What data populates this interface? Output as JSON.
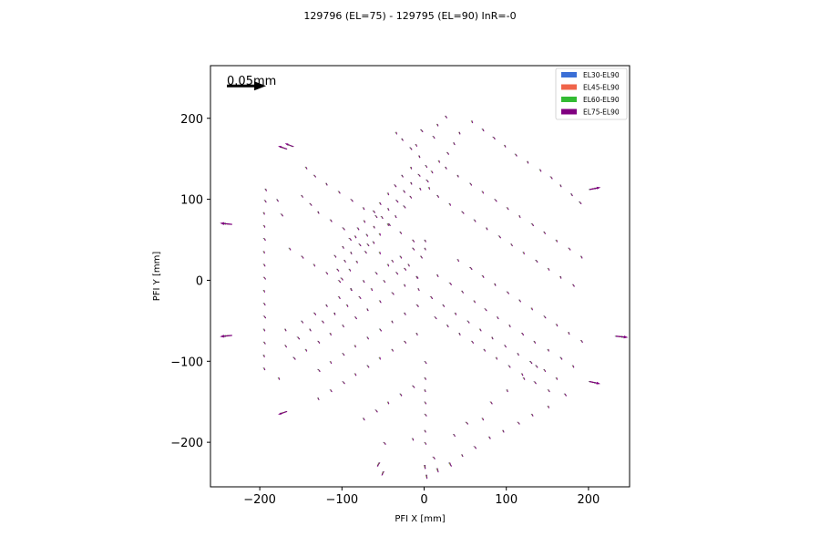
{
  "chart_data": {
    "type": "quiver",
    "title": "129796 (EL=75) - 129795 (EL=90) InR=-0",
    "xlabel": "PFI X [mm]",
    "ylabel": "PFI Y [mm]",
    "xlim": [
      -260,
      250
    ],
    "ylim": [
      -255,
      265
    ],
    "xticks": [
      -200,
      -100,
      0,
      100,
      200
    ],
    "yticks": [
      -200,
      -100,
      0,
      100,
      200
    ],
    "tick_labels_x": [
      "−200",
      "−100",
      "0",
      "100",
      "200"
    ],
    "tick_labels_y": [
      "−200",
      "−100",
      "0",
      "100",
      "200"
    ],
    "grid": false,
    "legend_position": "top-right",
    "quiver_key": {
      "label": "0.05mm",
      "length_mm": 0.05,
      "x": -240,
      "y": 240
    },
    "series": [
      {
        "name": "EL30-EL90",
        "color": "#3b6fd6"
      },
      {
        "name": "EL45-EL90",
        "color": "#f0644a"
      },
      {
        "name": "EL60-EL90",
        "color": "#33bb33"
      },
      {
        "name": "EL75-EL90",
        "color": "#800080"
      }
    ],
    "points": [
      [
        -35,
        183
      ],
      [
        -28,
        175
      ],
      [
        -18,
        164
      ],
      [
        -7,
        154
      ],
      [
        1,
        142
      ],
      [
        -8,
        131
      ],
      [
        -17,
        121
      ],
      [
        -26,
        111
      ],
      [
        -35,
        99
      ],
      [
        -45,
        89
      ],
      [
        -53,
        79
      ],
      [
        -62,
        67
      ],
      [
        -71,
        57
      ],
      [
        -80,
        45
      ],
      [
        -90,
        35
      ],
      [
        -98,
        25
      ],
      [
        -107,
        14
      ],
      [
        15,
        193
      ],
      [
        25,
        203
      ],
      [
        -5,
        186
      ],
      [
        -11,
        168
      ],
      [
        10,
        178
      ],
      [
        -17,
        140
      ],
      [
        -28,
        130
      ],
      [
        -37,
        118
      ],
      [
        -45,
        108
      ],
      [
        -55,
        96
      ],
      [
        -63,
        86
      ],
      [
        -74,
        74
      ],
      [
        -82,
        65
      ],
      [
        -92,
        52
      ],
      [
        -100,
        42
      ],
      [
        -110,
        31
      ],
      [
        42,
        183
      ],
      [
        35,
        170
      ],
      [
        27,
        158
      ],
      [
        17,
        148
      ],
      [
        8,
        135
      ],
      [
        2,
        124
      ],
      [
        -6,
        114
      ],
      [
        -18,
        104
      ],
      [
        -26,
        92
      ],
      [
        -36,
        80
      ],
      [
        -44,
        70
      ],
      [
        -55,
        58
      ],
      [
        -63,
        48
      ],
      [
        -73,
        36
      ],
      [
        -83,
        24
      ],
      [
        -92,
        14
      ],
      [
        -102,
        3
      ],
      [
        57,
        197
      ],
      [
        70,
        187
      ],
      [
        83,
        177
      ],
      [
        97,
        167
      ],
      [
        110,
        156
      ],
      [
        125,
        147
      ],
      [
        140,
        137
      ],
      [
        153,
        128
      ],
      [
        165,
        118
      ],
      [
        178,
        107
      ],
      [
        188,
        97
      ],
      [
        200,
        112
      ],
      [
        -235,
        69
      ],
      [
        -235,
        -68
      ],
      [
        -194,
        113
      ],
      [
        -195,
        99
      ],
      [
        -196,
        84
      ],
      [
        -196,
        68
      ],
      [
        -196,
        52
      ],
      [
        -196,
        36
      ],
      [
        -196,
        20
      ],
      [
        -196,
        4
      ],
      [
        -196,
        -12
      ],
      [
        -196,
        -28
      ],
      [
        -196,
        -44
      ],
      [
        -196,
        -60
      ],
      [
        -196,
        -76
      ],
      [
        -196,
        -92
      ],
      [
        -196,
        -108
      ],
      [
        -168,
        162
      ],
      [
        -168,
        -162
      ],
      [
        -180,
        100
      ],
      [
        -175,
        82
      ],
      [
        -178,
        -120
      ],
      [
        232,
        -69
      ],
      [
        200,
        -125
      ],
      [
        180,
        -105
      ],
      [
        165,
        -95
      ],
      [
        150,
        -85
      ],
      [
        133,
        -75
      ],
      [
        118,
        -65
      ],
      [
        103,
        -55
      ],
      [
        88,
        -45
      ],
      [
        73,
        -35
      ],
      [
        60,
        -25
      ],
      [
        45,
        -13
      ],
      [
        30,
        -3
      ],
      [
        15,
        7
      ],
      [
        190,
        -74
      ],
      [
        175,
        -64
      ],
      [
        160,
        -54
      ],
      [
        145,
        -44
      ],
      [
        130,
        -34
      ],
      [
        115,
        -24
      ],
      [
        100,
        -14
      ],
      [
        85,
        -4
      ],
      [
        70,
        6
      ],
      [
        55,
        16
      ],
      [
        40,
        26
      ],
      [
        180,
        -5
      ],
      [
        165,
        5
      ],
      [
        150,
        15
      ],
      [
        135,
        25
      ],
      [
        120,
        35
      ],
      [
        105,
        45
      ],
      [
        90,
        55
      ],
      [
        75,
        65
      ],
      [
        60,
        75
      ],
      [
        45,
        85
      ],
      [
        30,
        95
      ],
      [
        15,
        105
      ],
      [
        5,
        115
      ],
      [
        190,
        30
      ],
      [
        175,
        40
      ],
      [
        160,
        50
      ],
      [
        145,
        60
      ],
      [
        130,
        70
      ],
      [
        115,
        80
      ],
      [
        100,
        90
      ],
      [
        85,
        100
      ],
      [
        70,
        110
      ],
      [
        55,
        120
      ],
      [
        40,
        130
      ],
      [
        25,
        140
      ],
      [
        170,
        -140
      ],
      [
        150,
        -155
      ],
      [
        130,
        -165
      ],
      [
        113,
        -175
      ],
      [
        95,
        -185
      ],
      [
        78,
        -193
      ],
      [
        60,
        -205
      ],
      [
        45,
        -215
      ],
      [
        30,
        -225
      ],
      [
        15,
        -232
      ],
      [
        2,
        -240
      ],
      [
        -50,
        -236
      ],
      [
        -55,
        -225
      ],
      [
        0,
        -228
      ],
      [
        10,
        -218
      ],
      [
        160,
        -120
      ],
      [
        145,
        -110
      ],
      [
        128,
        -100
      ],
      [
        113,
        -90
      ],
      [
        97,
        -80
      ],
      [
        82,
        -70
      ],
      [
        67,
        -60
      ],
      [
        52,
        -50
      ],
      [
        37,
        -40
      ],
      [
        22,
        -30
      ],
      [
        7,
        -20
      ],
      [
        -8,
        -10
      ],
      [
        150,
        -135
      ],
      [
        133,
        -125
      ],
      [
        118,
        -115
      ],
      [
        102,
        -105
      ],
      [
        87,
        -95
      ],
      [
        72,
        -85
      ],
      [
        57,
        -75
      ],
      [
        42,
        -65
      ],
      [
        27,
        -55
      ],
      [
        12,
        -45
      ],
      [
        -170,
        -60
      ],
      [
        -150,
        -50
      ],
      [
        -135,
        -40
      ],
      [
        -120,
        -30
      ],
      [
        -105,
        -20
      ],
      [
        -90,
        -10
      ],
      [
        -75,
        0
      ],
      [
        -60,
        10
      ],
      [
        -45,
        20
      ],
      [
        -30,
        30
      ],
      [
        -15,
        40
      ],
      [
        0,
        50
      ],
      [
        -170,
        -80
      ],
      [
        -155,
        -70
      ],
      [
        -140,
        -60
      ],
      [
        -125,
        -50
      ],
      [
        -110,
        -40
      ],
      [
        -95,
        -30
      ],
      [
        -80,
        -20
      ],
      [
        -65,
        -10
      ],
      [
        -50,
        0
      ],
      [
        -35,
        10
      ],
      [
        -20,
        20
      ],
      [
        -5,
        30
      ],
      [
        -160,
        -95
      ],
      [
        -145,
        -85
      ],
      [
        -130,
        -75
      ],
      [
        -115,
        -65
      ],
      [
        -100,
        -55
      ],
      [
        -85,
        -45
      ],
      [
        -70,
        -35
      ],
      [
        -55,
        -25
      ],
      [
        -40,
        -15
      ],
      [
        -25,
        -5
      ],
      [
        -10,
        5
      ],
      [
        -130,
        -110
      ],
      [
        -115,
        -100
      ],
      [
        -100,
        -90
      ],
      [
        -85,
        -80
      ],
      [
        -70,
        -70
      ],
      [
        -55,
        -60
      ],
      [
        -40,
        -50
      ],
      [
        -25,
        -40
      ],
      [
        -10,
        -30
      ],
      [
        -130,
        -145
      ],
      [
        -115,
        -135
      ],
      [
        -100,
        -125
      ],
      [
        -85,
        -115
      ],
      [
        -70,
        -105
      ],
      [
        -55,
        -95
      ],
      [
        -40,
        -85
      ],
      [
        -25,
        -75
      ],
      [
        -10,
        -65
      ],
      [
        -75,
        -170
      ],
      [
        -60,
        -160
      ],
      [
        -45,
        -150
      ],
      [
        -30,
        -140
      ],
      [
        -15,
        -130
      ],
      [
        0,
        -120
      ],
      [
        0,
        -100
      ],
      [
        0,
        -135
      ],
      [
        0,
        -150
      ],
      [
        0,
        -165
      ],
      [
        0,
        -185
      ],
      [
        0,
        -200
      ],
      [
        -50,
        -200
      ],
      [
        -15,
        -195
      ],
      [
        35,
        -190
      ],
      [
        50,
        -175
      ],
      [
        70,
        -170
      ],
      [
        80,
        -150
      ],
      [
        100,
        -135
      ],
      [
        120,
        -120
      ],
      [
        135,
        -105
      ],
      [
        -160,
        165
      ],
      [
        -145,
        140
      ],
      [
        -135,
        130
      ],
      [
        -120,
        120
      ],
      [
        -105,
        110
      ],
      [
        -90,
        100
      ],
      [
        -75,
        90
      ],
      [
        -60,
        80
      ],
      [
        -45,
        70
      ],
      [
        -30,
        60
      ],
      [
        -15,
        50
      ],
      [
        0,
        40
      ],
      [
        -150,
        105
      ],
      [
        -140,
        95
      ],
      [
        -130,
        85
      ],
      [
        -115,
        75
      ],
      [
        -100,
        65
      ],
      [
        -85,
        55
      ],
      [
        -70,
        45
      ],
      [
        -55,
        35
      ],
      [
        -40,
        25
      ],
      [
        -25,
        15
      ],
      [
        -10,
        5
      ],
      [
        -165,
        40
      ],
      [
        -150,
        30
      ],
      [
        -135,
        20
      ],
      [
        -120,
        10
      ],
      [
        -105,
        0
      ],
      [
        -90,
        -10
      ]
    ]
  }
}
